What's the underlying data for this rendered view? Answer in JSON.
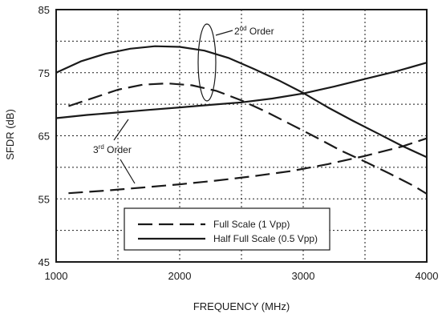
{
  "chart_data": {
    "type": "line",
    "xlabel": "FREQUENCY (MHz)",
    "ylabel": "SFDR (dB)",
    "xlim": [
      1000,
      4000
    ],
    "ylim": [
      45,
      85
    ],
    "x_ticks": [
      1000,
      2000,
      3000,
      4000
    ],
    "y_ticks": [
      45,
      55,
      65,
      75,
      85
    ],
    "x_grid": [
      1500,
      2000,
      2500,
      3000,
      3500
    ],
    "y_grid": [
      50,
      55,
      60,
      65,
      70,
      75,
      80
    ],
    "grid": true,
    "legend": {
      "placement": "bottom-center",
      "entries": [
        {
          "label": "Full Scale (1 Vpp)",
          "style": "dashed"
        },
        {
          "label": "Half Full Scale (0.5 Vpp)",
          "style": "solid"
        }
      ]
    },
    "annotations": [
      {
        "base": "2",
        "sup": "nd",
        "rest": " Order"
      },
      {
        "base": "3",
        "sup": "rd",
        "rest": " Order"
      }
    ],
    "series": [
      {
        "legend": "Half Full Scale (0.5 Vpp)",
        "order": "2nd",
        "style": "solid",
        "x": [
          1000,
          1200,
          1400,
          1600,
          1800,
          2000,
          2200,
          2400,
          2600,
          2800,
          3000,
          3200,
          3400,
          3600,
          3800,
          4000
        ],
        "y": [
          75.0,
          76.8,
          78.0,
          78.8,
          79.2,
          79.1,
          78.5,
          77.3,
          75.6,
          73.8,
          71.8,
          69.5,
          67.4,
          65.4,
          63.4,
          61.6
        ]
      },
      {
        "legend": "Full Scale (1 Vpp)",
        "order": "2nd",
        "style": "dashed",
        "x": [
          1100,
          1300,
          1500,
          1700,
          1900,
          2100,
          2300,
          2500,
          2700,
          2900,
          3100,
          3300,
          3500,
          3700,
          3900,
          4000
        ],
        "y": [
          69.7,
          71.0,
          72.3,
          73.1,
          73.3,
          73.0,
          72.1,
          70.6,
          68.8,
          66.8,
          64.8,
          62.7,
          60.9,
          59.0,
          57.0,
          55.8
        ]
      },
      {
        "legend": "Half Full Scale (0.5 Vpp)",
        "order": "3rd",
        "style": "solid",
        "x": [
          1000,
          1250,
          1500,
          1750,
          2000,
          2250,
          2500,
          2750,
          3000,
          3250,
          3500,
          3750,
          4000
        ],
        "y": [
          67.8,
          68.3,
          68.7,
          69.1,
          69.5,
          69.9,
          70.3,
          70.9,
          71.7,
          72.8,
          74.0,
          75.2,
          76.6
        ]
      },
      {
        "legend": "Full Scale (1 Vpp)",
        "order": "3rd",
        "style": "dashed",
        "x": [
          1100,
          1400,
          1700,
          2000,
          2300,
          2600,
          2900,
          3200,
          3500,
          3800,
          4000
        ],
        "y": [
          55.9,
          56.3,
          56.8,
          57.3,
          57.9,
          58.6,
          59.4,
          60.5,
          61.8,
          63.3,
          64.6
        ]
      }
    ]
  }
}
